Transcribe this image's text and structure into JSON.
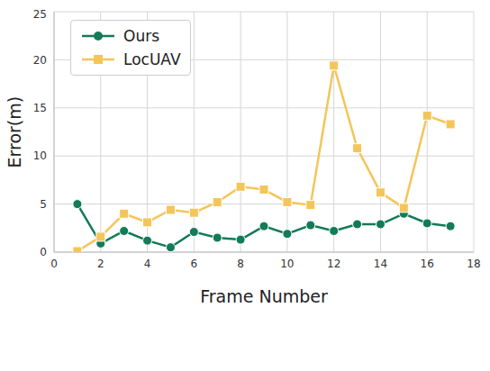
{
  "chart_data": {
    "type": "line",
    "x_label": "Frame Number",
    "y_label": "Error(m)",
    "x": [
      1,
      2,
      3,
      4,
      5,
      6,
      7,
      8,
      9,
      10,
      11,
      12,
      13,
      14,
      15,
      16,
      17
    ],
    "series": [
      {
        "name": "Ours",
        "color": "#137b56",
        "marker": "o",
        "line_style": "solid",
        "values": [
          5.0,
          0.9,
          2.2,
          1.2,
          0.5,
          2.1,
          1.5,
          1.3,
          2.7,
          1.9,
          2.8,
          2.2,
          2.9,
          2.9,
          4.0,
          3.0,
          2.7
        ]
      },
      {
        "name": "LocUAV",
        "color": "#f4c55a",
        "marker": "s",
        "line_style": "solid",
        "values": [
          0.1,
          1.6,
          4.0,
          3.1,
          4.4,
          4.1,
          5.2,
          6.8,
          6.5,
          5.2,
          4.9,
          19.4,
          10.8,
          6.2,
          4.6,
          14.2,
          13.3
        ]
      }
    ],
    "xlim": [
      0,
      18
    ],
    "xticks": [
      0,
      2,
      4,
      6,
      8,
      10,
      12,
      14,
      16,
      18
    ],
    "ylim": [
      0,
      25
    ],
    "yticks": [
      0,
      5,
      10,
      15,
      20,
      25
    ],
    "grid": true,
    "legend": "upper left"
  }
}
